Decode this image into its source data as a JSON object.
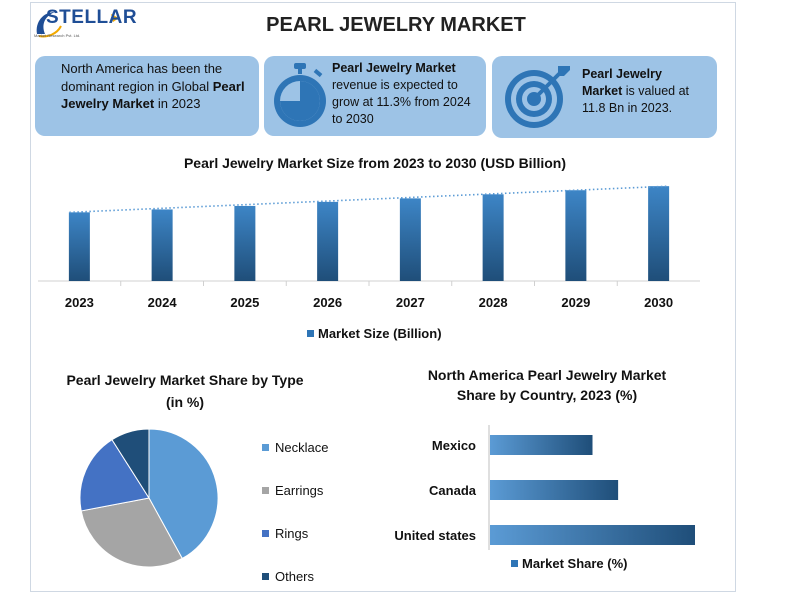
{
  "brand": {
    "name": "STELLAR",
    "tagline": "Market Research Pvt. Ltd."
  },
  "title": "PEARL JEWELRY MARKET",
  "cards": {
    "region": {
      "pre": "North America has been the dominant region in Global ",
      "bold": "Pearl Jewelry Market",
      "post": " in 2023",
      "icon": "none"
    },
    "growth": {
      "bold": "Pearl Jewelry Market",
      "post": " revenue is expected to grow at 11.3% from 2024 to 2030",
      "icon": "stopwatch-icon"
    },
    "value": {
      "bold": "Pearl Jewelry Market",
      "post": " is valued at 11.8 Bn in 2023.",
      "icon": "target-icon"
    }
  },
  "colors": {
    "accent": "#2e75b6",
    "card": "#9dc3e6",
    "grey": "#a5a5a5",
    "light": "#5b9bd5",
    "dark": "#1f4e79"
  },
  "chart_data": [
    {
      "type": "bar",
      "title": "Pearl Jewelry Market Size from 2023 to 2030 (USD Billion)",
      "categories": [
        "2023",
        "2024",
        "2025",
        "2026",
        "2027",
        "2028",
        "2029",
        "2030"
      ],
      "series": [
        {
          "name": "Market Size (Billion)",
          "values": [
            11.8,
            12.3,
            12.9,
            13.6,
            14.2,
            14.9,
            15.6,
            16.3
          ]
        }
      ],
      "trendline": "dotted",
      "ylim": [
        0,
        16.5
      ],
      "legend": "bottom",
      "grid": false
    },
    {
      "type": "pie",
      "title": "Pearl Jewelry Market Share by Type",
      "subtitle": "(in %)",
      "labels": [
        "Necklace",
        "Earrings",
        "Rings",
        "Others"
      ],
      "values": [
        42,
        30,
        19,
        9
      ],
      "colors": [
        "#5b9bd5",
        "#a5a5a5",
        "#4472c4",
        "#1f4e79"
      ],
      "legend": "right"
    },
    {
      "type": "bar",
      "orientation": "horizontal",
      "title": "North America Pearl Jewelry Market Share by Country, 2023 (%)",
      "categories": [
        "Mexico",
        "Canada",
        "United states"
      ],
      "series": [
        {
          "name": "Market Share (%)",
          "values": [
            12,
            15,
            24
          ]
        }
      ],
      "xlim": [
        0,
        24
      ],
      "legend": "bottom"
    }
  ]
}
